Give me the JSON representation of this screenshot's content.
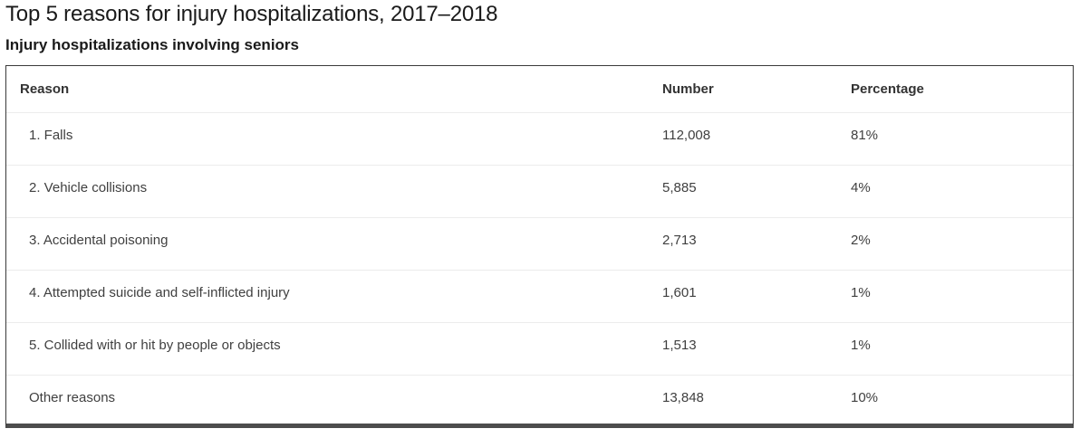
{
  "page": {
    "title": "Top 5 reasons for injury hospitalizations, 2017–2018",
    "subtitle": "Injury hospitalizations involving seniors"
  },
  "table": {
    "columns": [
      "Reason",
      "Number",
      "Percentage"
    ],
    "rows": [
      {
        "reason": "1. Falls",
        "number": "112,008",
        "percentage": "81%"
      },
      {
        "reason": "2. Vehicle collisions",
        "number": "5,885",
        "percentage": "4%"
      },
      {
        "reason": "3. Accidental poisoning",
        "number": "2,713",
        "percentage": "2%"
      },
      {
        "reason": "4. Attempted suicide and self-inflicted injury",
        "number": "1,601",
        "percentage": "1%"
      },
      {
        "reason": "5. Collided with or hit by people or objects",
        "number": "1,513",
        "percentage": "1%"
      },
      {
        "reason": "Other reasons",
        "number": "13,848",
        "percentage": "10%"
      }
    ]
  },
  "chart_data": {
    "type": "table",
    "title": "Top 5 reasons for injury hospitalizations, 2017–2018",
    "subtitle": "Injury hospitalizations involving seniors",
    "columns": [
      "Reason",
      "Number",
      "Percentage"
    ],
    "rows": [
      [
        "1. Falls",
        112008,
        "81%"
      ],
      [
        "2. Vehicle collisions",
        5885,
        "4%"
      ],
      [
        "3. Accidental poisoning",
        2713,
        "2%"
      ],
      [
        "4. Attempted suicide and self-inflicted injury",
        1601,
        "1%"
      ],
      [
        "5. Collided with or hit by people or objects",
        1513,
        "1%"
      ],
      [
        "Other reasons",
        13848,
        "10%"
      ]
    ],
    "layout_hints": {
      "row_dividers": true,
      "column_dividers": false,
      "thick_bottom_border": true
    }
  },
  "colors": {
    "text_primary": "#1a1a1a",
    "text_table": "#404040",
    "header_text": "#333333",
    "outer_border": "#3a3a3a",
    "bottom_bar": "#4d4d4d",
    "row_divider": "#ececec",
    "background": "#ffffff"
  }
}
